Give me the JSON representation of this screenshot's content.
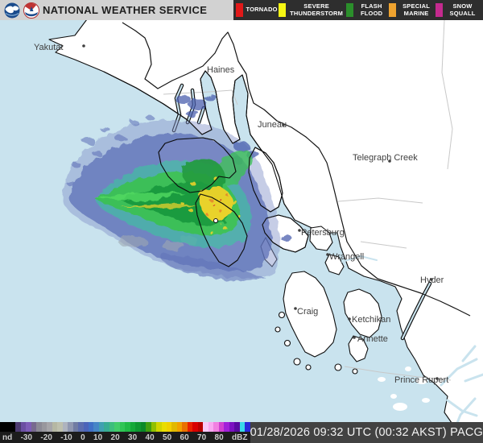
{
  "header": {
    "title": "NATIONAL WEATHER SERVICE"
  },
  "legend": {
    "items": [
      {
        "label": "TORNADO",
        "color": "#e11919"
      },
      {
        "label": "SEVERE THUNDERSTORM",
        "color": "#f6f613"
      },
      {
        "label": "FLASH FLOOD",
        "color": "#2b8f2b"
      },
      {
        "label": "SPECIAL MARINE",
        "color": "#efa32f"
      },
      {
        "label": "SNOW SQUALL",
        "color": "#c42a8e"
      }
    ]
  },
  "map": {
    "labels": [
      "Yakutat",
      "Haines",
      "Juneau",
      "Telegraph Creek",
      "Petersburg",
      "Wrangell",
      "Hyder",
      "Craig",
      "Ketchikan",
      "Annette",
      "Prince Rupert"
    ],
    "station_id": "PACG"
  },
  "footer": {
    "scale_labels": [
      "nd",
      "-30",
      "-20",
      "-10",
      "0",
      "10",
      "20",
      "30",
      "40",
      "50",
      "60",
      "70",
      "80",
      "dBZ"
    ],
    "colorbar_colors": [
      "#000000",
      "#000000",
      "#000000",
      "#4b3a70",
      "#6b4fa2",
      "#7e5db7",
      "#77698e",
      "#8b8995",
      "#98979d",
      "#a6a5a9",
      "#b5b7a3",
      "#bec0ae",
      "#aeb3be",
      "#9098b1",
      "#707ca3",
      "#5b6daf",
      "#4b64b9",
      "#4070c6",
      "#4686c6",
      "#40a0b1",
      "#38ac94",
      "#3dbe7d",
      "#42cd69",
      "#30c556",
      "#20ba46",
      "#13a939",
      "#0d9831",
      "#0b8929",
      "#409f10",
      "#90c000",
      "#d0d500",
      "#e9dd00",
      "#f1d100",
      "#e1b900",
      "#f1a100",
      "#e97100",
      "#e92100",
      "#d90000",
      "#b90000",
      "#f9c9f9",
      "#f9a9f1",
      "#f181e1",
      "#d141d1",
      "#a121d9",
      "#7b11c1",
      "#590aa1",
      "#39d9e9",
      "#2929d9"
    ],
    "timestamp": "01/28/2026 09:32 UTC (00:32 AKST) PACG"
  },
  "colors": {
    "water": "#c9e3ee",
    "land": "#ffffff",
    "coast": "#0d0d0d",
    "border": "#141414",
    "zone_line": "#c8c8c8",
    "label_text": "#3f3f3f",
    "header_bg": "#d2d2d2",
    "header_text": "#1f1f1f",
    "legend_bg": "#2e2e2e",
    "legend_text": "#ffffff",
    "footer_bg": "#1c1c1c",
    "footer_label": "#cccccc",
    "timestamp_bg": "#424242",
    "timestamp_text": "#f2f2f2",
    "echo_faint": "#8593c9",
    "echo_blue": "#5a6db6",
    "echo_midblue": "#4a5fae",
    "echo_teal": "#43b2a4",
    "echo_green": "#33bd4e",
    "echo_dkgreen": "#0f9430",
    "echo_ltgreen": "#49d957",
    "echo_yellow": "#e8cf1d",
    "echo_orange": "#e5861c",
    "echo_red": "#d42b1f",
    "echo_gray": "#9aa3ae"
  }
}
